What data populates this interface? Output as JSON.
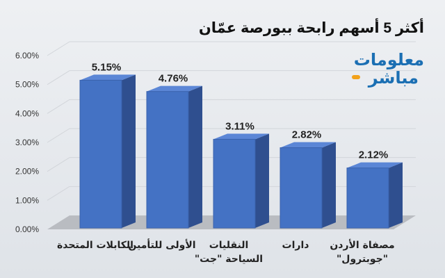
{
  "chart_data": {
    "type": "bar",
    "title": "أكثر 5 أسهم رابحة ببورصة عمّان",
    "categories": [
      [
        "الكابلات المتحدة"
      ],
      [
        "الأولى للتأمين"
      ],
      [
        "النقليات",
        "السياحة \"جت\""
      ],
      [
        "دارات"
      ],
      [
        "مصفاة الأردن",
        "\"جوبترول\""
      ]
    ],
    "values": [
      5.15,
      4.76,
      3.11,
      2.82,
      2.12
    ],
    "data_labels": [
      "5.15%",
      "4.76%",
      "3.11%",
      "2.82%",
      "2.12%"
    ],
    "y_ticks": [
      "0.00%",
      "1.00%",
      "2.00%",
      "3.00%",
      "4.00%",
      "5.00%",
      "6.00%"
    ],
    "ylim": [
      0,
      6
    ],
    "grid": true,
    "bar_color": "#4472c4"
  },
  "logo": {
    "line1": "معلومات",
    "line2": "مباشر",
    "color": "#1b6fb3",
    "accent": "#f2a21c"
  }
}
